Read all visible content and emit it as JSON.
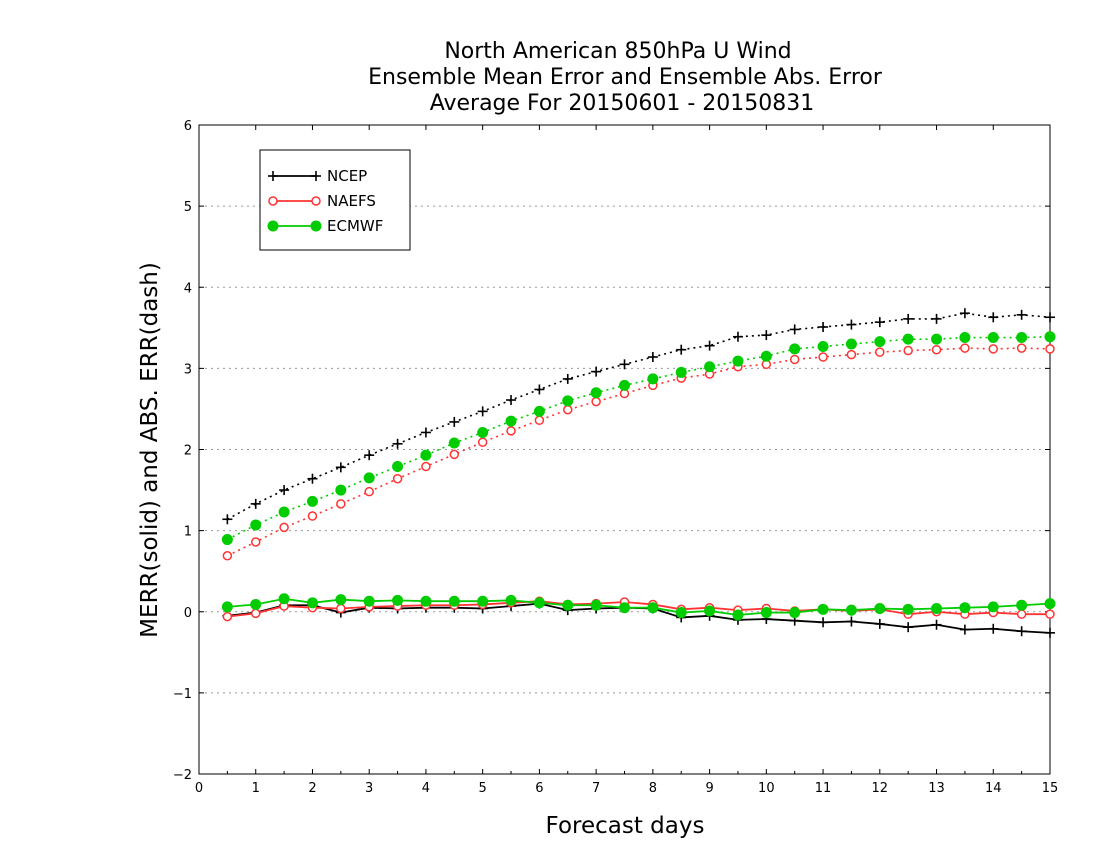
{
  "chart_data": {
    "type": "line",
    "title_lines": [
      "North American 850hPa U Wind",
      "Ensemble Mean Error and Ensemble Abs. Error",
      "Average For 20150601 - 20150831"
    ],
    "xlabel": "Forecast days",
    "ylabel": "MERR(solid) and ABS. ERR(dash)",
    "xlim": [
      0,
      15
    ],
    "ylim": [
      -2,
      6
    ],
    "xticks": [
      0,
      1,
      2,
      3,
      4,
      5,
      6,
      7,
      8,
      9,
      10,
      11,
      12,
      13,
      14,
      15
    ],
    "yticks": [
      -2,
      -1,
      0,
      1,
      2,
      3,
      4,
      5,
      6
    ],
    "ytick_labels": [
      "−2",
      "−1",
      "0",
      "1",
      "2",
      "3",
      "4",
      "5",
      "6"
    ],
    "grid": "horizontal dotted",
    "legend_position": "top-left",
    "x": [
      0.5,
      1.0,
      1.5,
      2.0,
      2.5,
      3.0,
      3.5,
      4.0,
      4.5,
      5.0,
      5.5,
      6.0,
      6.5,
      7.0,
      7.5,
      8.0,
      8.5,
      9.0,
      9.5,
      10.0,
      10.5,
      11.0,
      11.5,
      12.0,
      12.5,
      13.0,
      13.5,
      14.0,
      14.5,
      15.0
    ],
    "series": [
      {
        "name": "NCEP",
        "color": "#000000",
        "marker": "plus",
        "abs_err": [
          1.14,
          1.33,
          1.5,
          1.64,
          1.78,
          1.93,
          2.07,
          2.21,
          2.34,
          2.47,
          2.61,
          2.74,
          2.87,
          2.96,
          3.05,
          3.14,
          3.23,
          3.28,
          3.39,
          3.41,
          3.48,
          3.51,
          3.54,
          3.57,
          3.61,
          3.61,
          3.68,
          3.63,
          3.66,
          3.63
        ],
        "mean_err": [
          -0.05,
          -0.01,
          0.08,
          0.08,
          -0.01,
          0.05,
          0.04,
          0.05,
          0.05,
          0.04,
          0.07,
          0.1,
          0.02,
          0.04,
          0.05,
          0.04,
          -0.07,
          -0.05,
          -0.1,
          -0.09,
          -0.11,
          -0.13,
          -0.12,
          -0.15,
          -0.19,
          -0.16,
          -0.22,
          -0.21,
          -0.24,
          -0.26
        ]
      },
      {
        "name": "NAEFS",
        "color": "#ff3333",
        "marker": "open-circle",
        "abs_err": [
          0.69,
          0.86,
          1.04,
          1.18,
          1.33,
          1.48,
          1.64,
          1.79,
          1.94,
          2.09,
          2.23,
          2.36,
          2.49,
          2.59,
          2.69,
          2.79,
          2.88,
          2.93,
          3.02,
          3.05,
          3.11,
          3.14,
          3.17,
          3.2,
          3.22,
          3.23,
          3.25,
          3.24,
          3.25,
          3.24
        ],
        "mean_err": [
          -0.06,
          -0.02,
          0.07,
          0.05,
          0.04,
          0.06,
          0.07,
          0.08,
          0.08,
          0.09,
          0.11,
          0.13,
          0.09,
          0.1,
          0.12,
          0.09,
          0.03,
          0.05,
          0.02,
          0.04,
          0.01,
          0.03,
          0.01,
          0.03,
          -0.03,
          0.0,
          -0.03,
          -0.01,
          -0.03,
          -0.03
        ]
      },
      {
        "name": "ECMWF",
        "color": "#00cc00",
        "marker": "filled-circle",
        "abs_err": [
          0.89,
          1.07,
          1.23,
          1.36,
          1.5,
          1.65,
          1.79,
          1.93,
          2.08,
          2.21,
          2.35,
          2.47,
          2.6,
          2.7,
          2.79,
          2.87,
          2.95,
          3.02,
          3.09,
          3.15,
          3.24,
          3.27,
          3.3,
          3.33,
          3.36,
          3.36,
          3.38,
          3.38,
          3.38,
          3.39
        ],
        "mean_err": [
          0.06,
          0.09,
          0.16,
          0.11,
          0.15,
          0.13,
          0.14,
          0.13,
          0.13,
          0.13,
          0.14,
          0.11,
          0.08,
          0.08,
          0.05,
          0.05,
          -0.01,
          0.01,
          -0.04,
          -0.01,
          -0.01,
          0.03,
          0.02,
          0.04,
          0.03,
          0.04,
          0.05,
          0.06,
          0.08,
          0.1
        ]
      }
    ]
  }
}
